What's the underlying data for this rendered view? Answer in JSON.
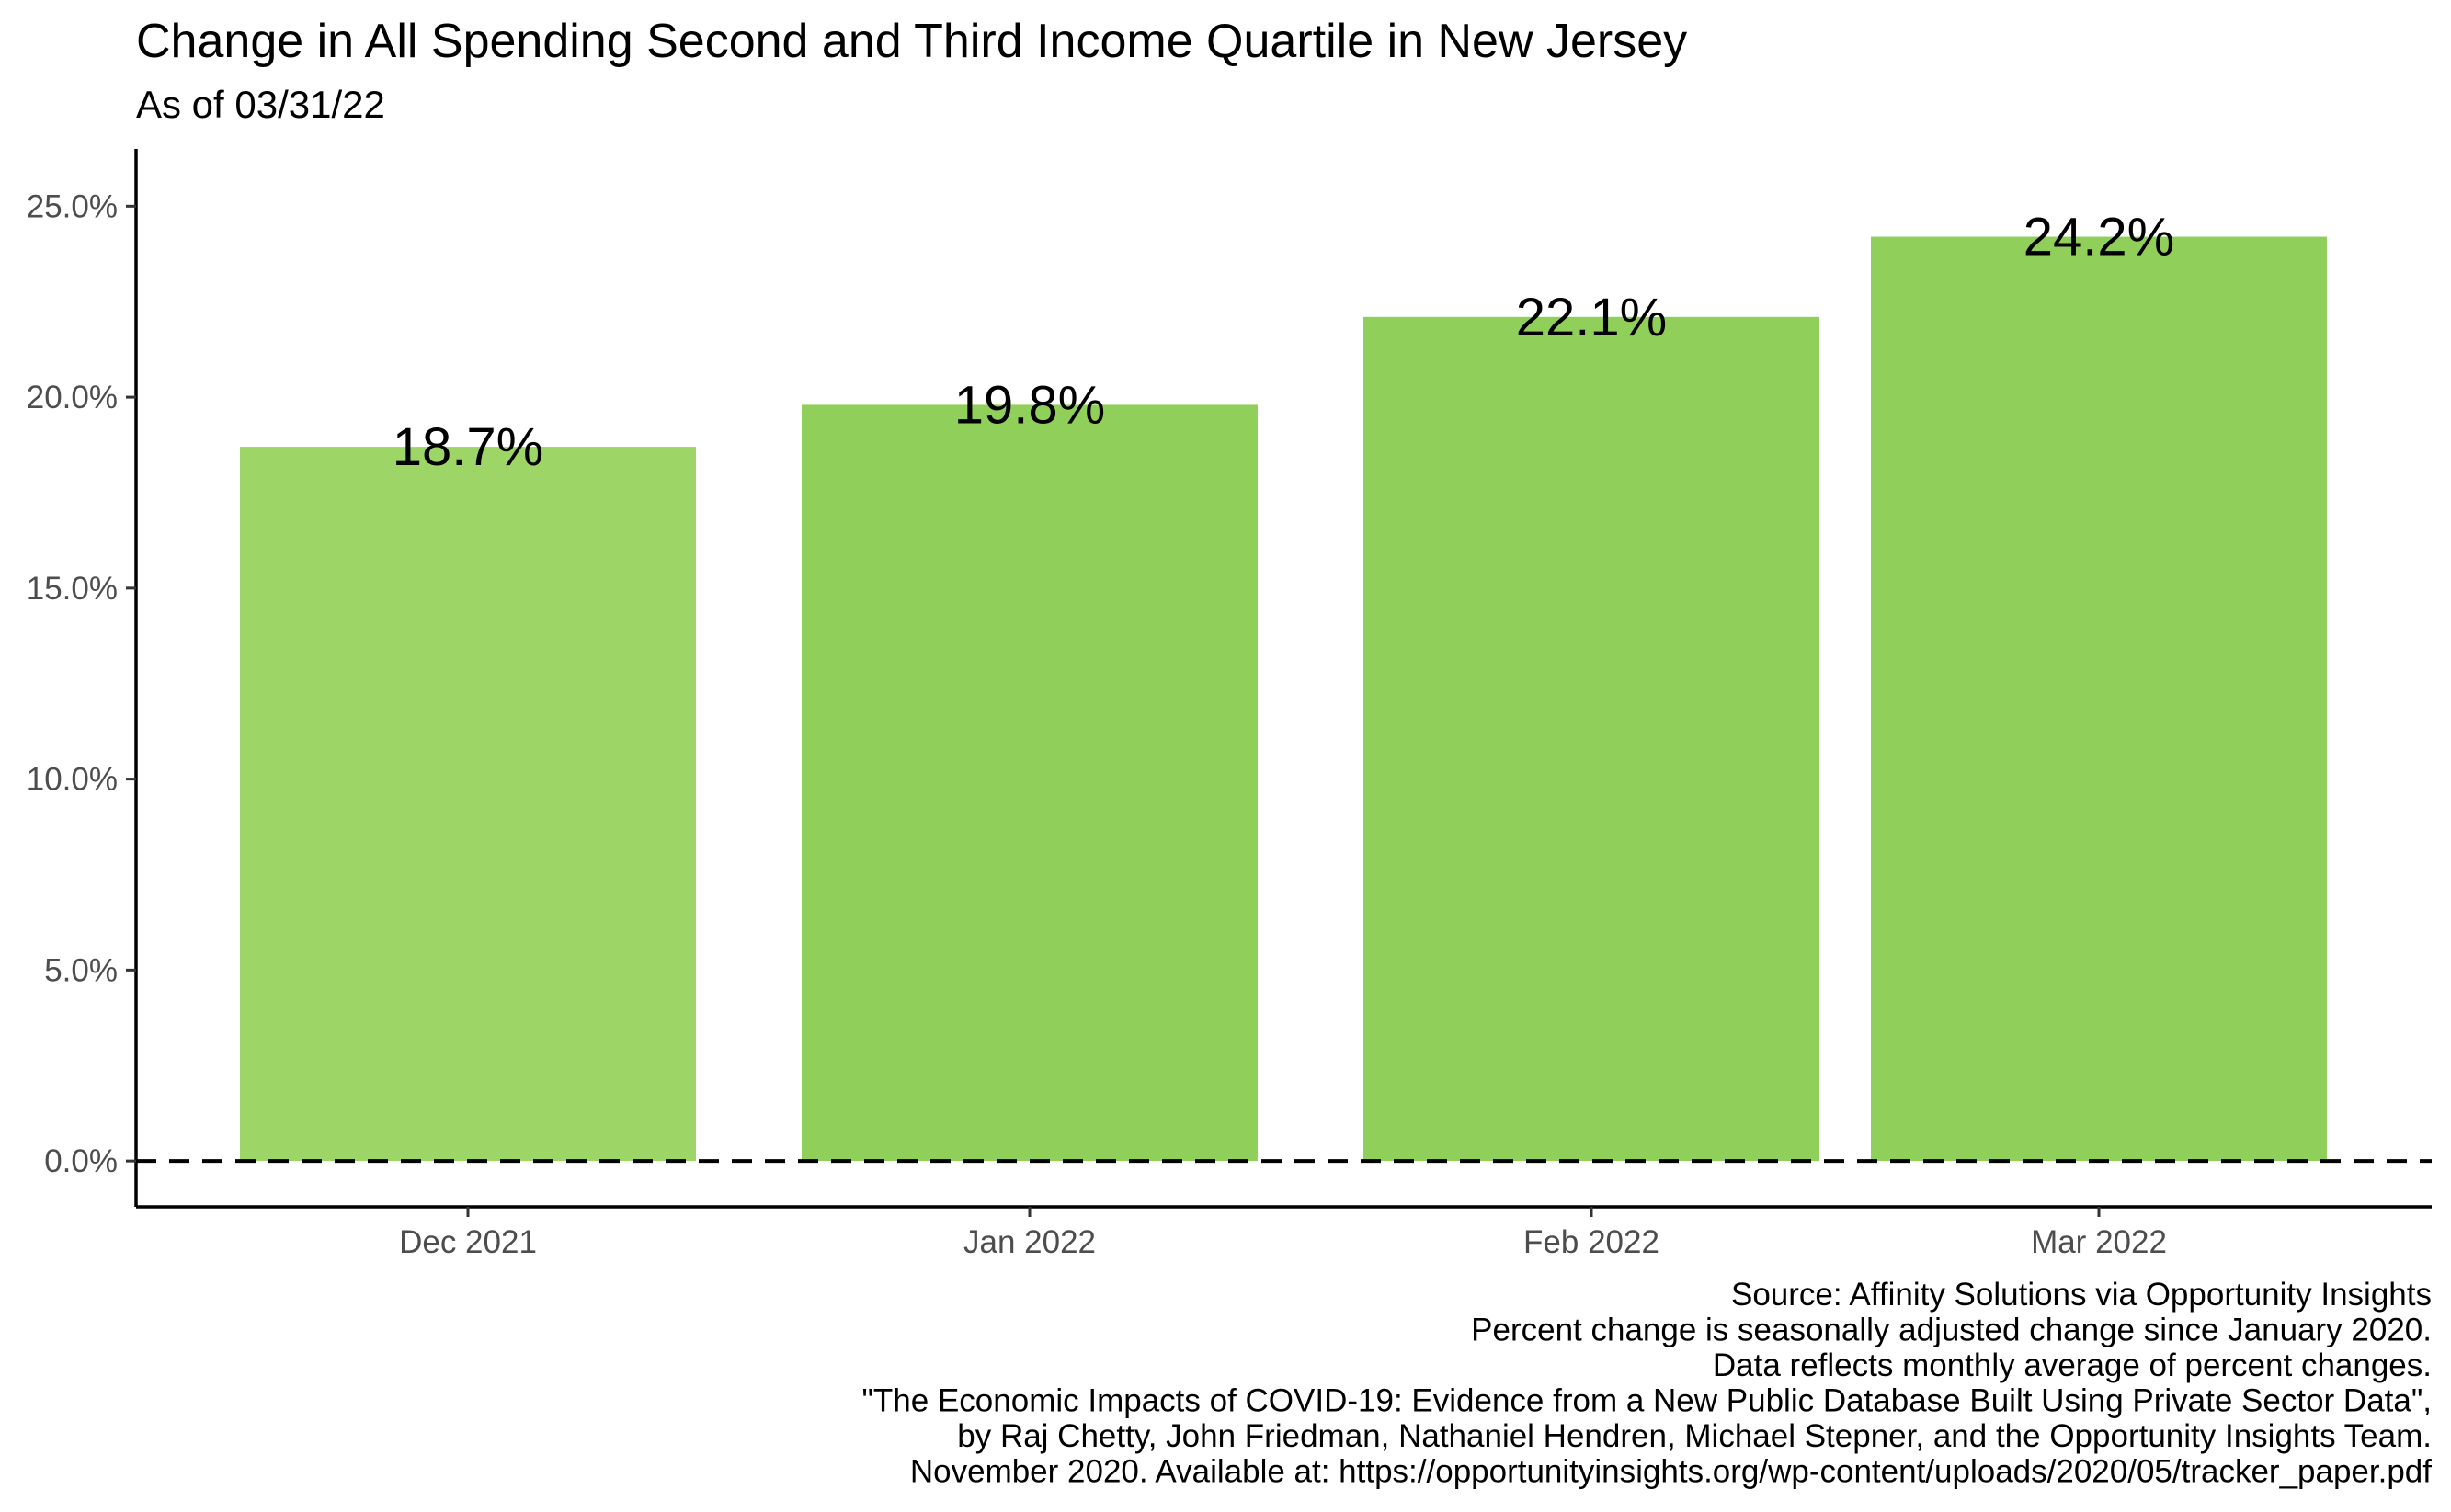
{
  "chart_data": {
    "type": "bar",
    "title": "Change in All Spending Second and Third Income Quartile in New Jersey",
    "subtitle": "As of 03/31/22",
    "categories": [
      "Dec 2021",
      "Jan 2022",
      "Feb 2022",
      "Mar 2022"
    ],
    "values": [
      18.7,
      19.8,
      22.1,
      24.2
    ],
    "data_labels": [
      "18.7%",
      "19.8%",
      "22.1%",
      "24.2%"
    ],
    "bar_colors": [
      "#9dd666",
      "#8fcf5a",
      "#8fcf5a",
      "#8fcf5a"
    ],
    "ylim": [
      -1.2,
      26.5
    ],
    "y_ticks": [
      0,
      5,
      10,
      15,
      20,
      25
    ],
    "y_tick_labels": [
      "0.0%",
      "5.0%",
      "10.0%",
      "15.0%",
      "20.0%",
      "25.0%"
    ],
    "xlabel": "",
    "ylabel": "",
    "reference_line": {
      "y": 0,
      "style": "dashed"
    },
    "grid": false,
    "legend": "none",
    "caption": [
      "Source: Affinity Solutions via Opportunity Insights",
      "Percent change is seasonally adjusted change since January 2020.",
      "Data reflects monthly average of percent changes.",
      "\"The Economic Impacts of COVID-19: Evidence from a New Public Database Built Using Private Sector Data\",",
      "by Raj Chetty, John Friedman, Nathaniel Hendren, Michael Stepner, and the Opportunity Insights Team.",
      "November 2020. Available at: https://opportunityinsights.org/wp-content/uploads/2020/05/tracker_paper.pdf"
    ]
  }
}
